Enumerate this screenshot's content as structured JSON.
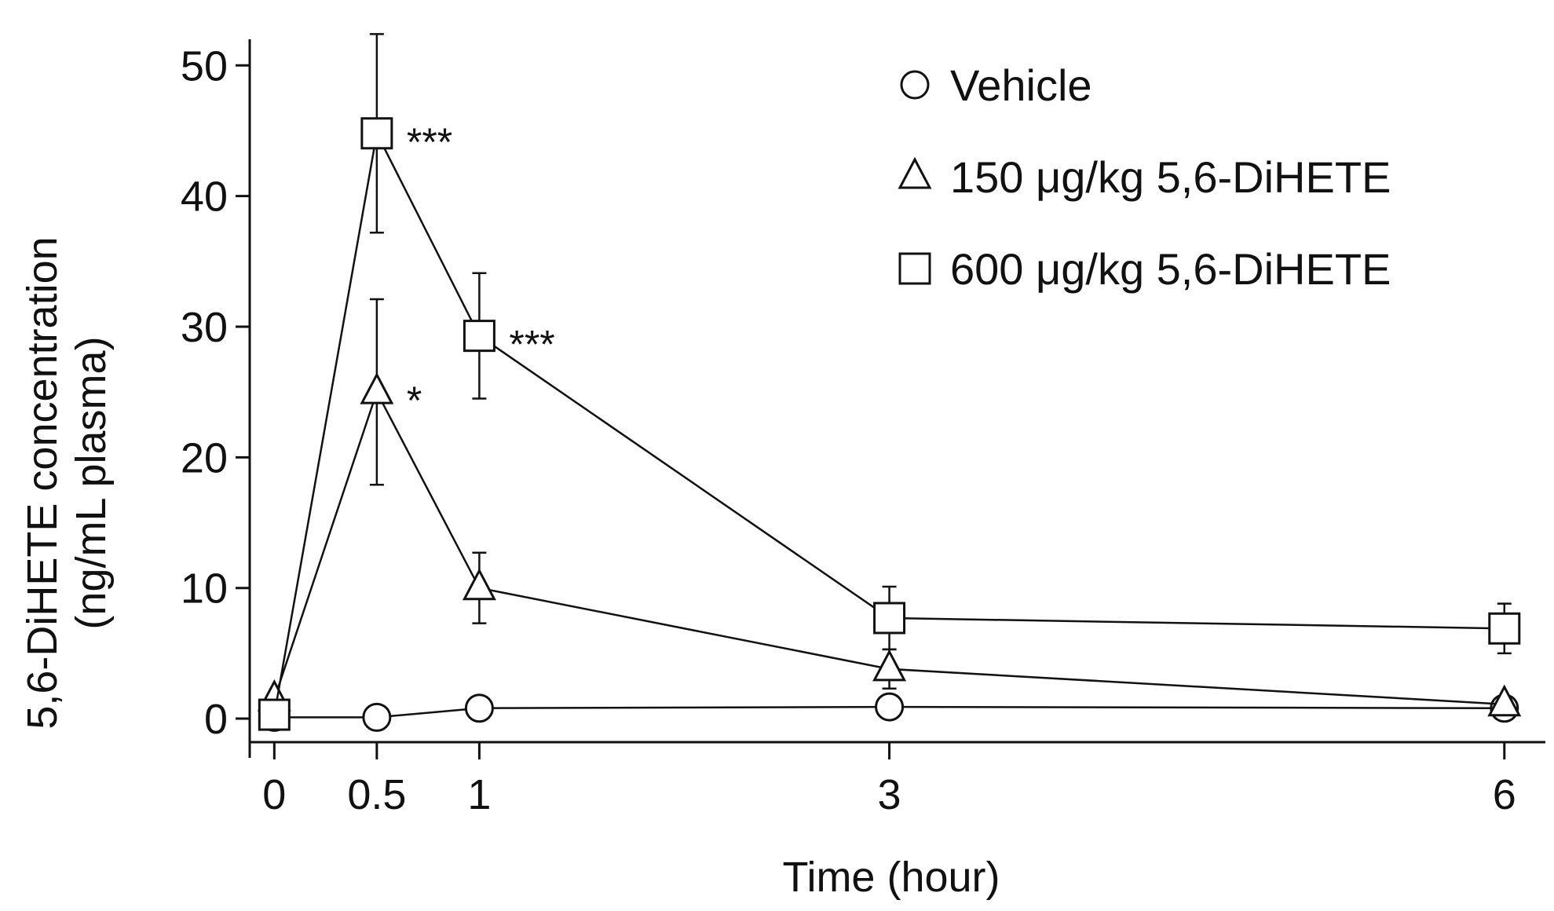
{
  "chart_data": {
    "type": "line",
    "xlabel": "Time (hour)",
    "ylabel_line1": "5,6-DiHETE concentration",
    "ylabel_line2": "(ng/mL plasma)",
    "x": [
      0,
      0.5,
      1,
      3,
      6
    ],
    "x_tick_labels": [
      "0",
      "0.5",
      "1",
      "3",
      "6"
    ],
    "y_ticks": [
      0,
      10,
      20,
      30,
      40,
      50
    ],
    "y_tick_labels": [
      "0",
      "10",
      "20",
      "30",
      "40",
      "50"
    ],
    "xlim": [
      -0.12,
      6.2
    ],
    "ylim": [
      -1.8,
      52
    ],
    "legend_position": "top-right",
    "series": [
      {
        "name": "Vehicle",
        "marker": "circle",
        "values": [
          0.1,
          0.1,
          0.8,
          0.9,
          0.8
        ],
        "errors": [
          0,
          0,
          0,
          0,
          0
        ]
      },
      {
        "name": "150 μg/kg 5,6-DiHETE",
        "marker": "triangle",
        "values": [
          1.5,
          25.0,
          10.0,
          3.8,
          1.1
        ],
        "errors": [
          0,
          7.1,
          2.7,
          1.5,
          0
        ]
      },
      {
        "name": "600 μg/kg 5,6-DiHETE",
        "marker": "square",
        "values": [
          0.3,
          44.8,
          29.3,
          7.7,
          6.9
        ],
        "errors": [
          0,
          7.6,
          4.8,
          2.4,
          1.9
        ]
      }
    ],
    "annotations": [
      {
        "series": 2,
        "point": 1,
        "text": "***"
      },
      {
        "series": 2,
        "point": 2,
        "text": "***"
      },
      {
        "series": 1,
        "point": 1,
        "text": "*"
      }
    ]
  }
}
